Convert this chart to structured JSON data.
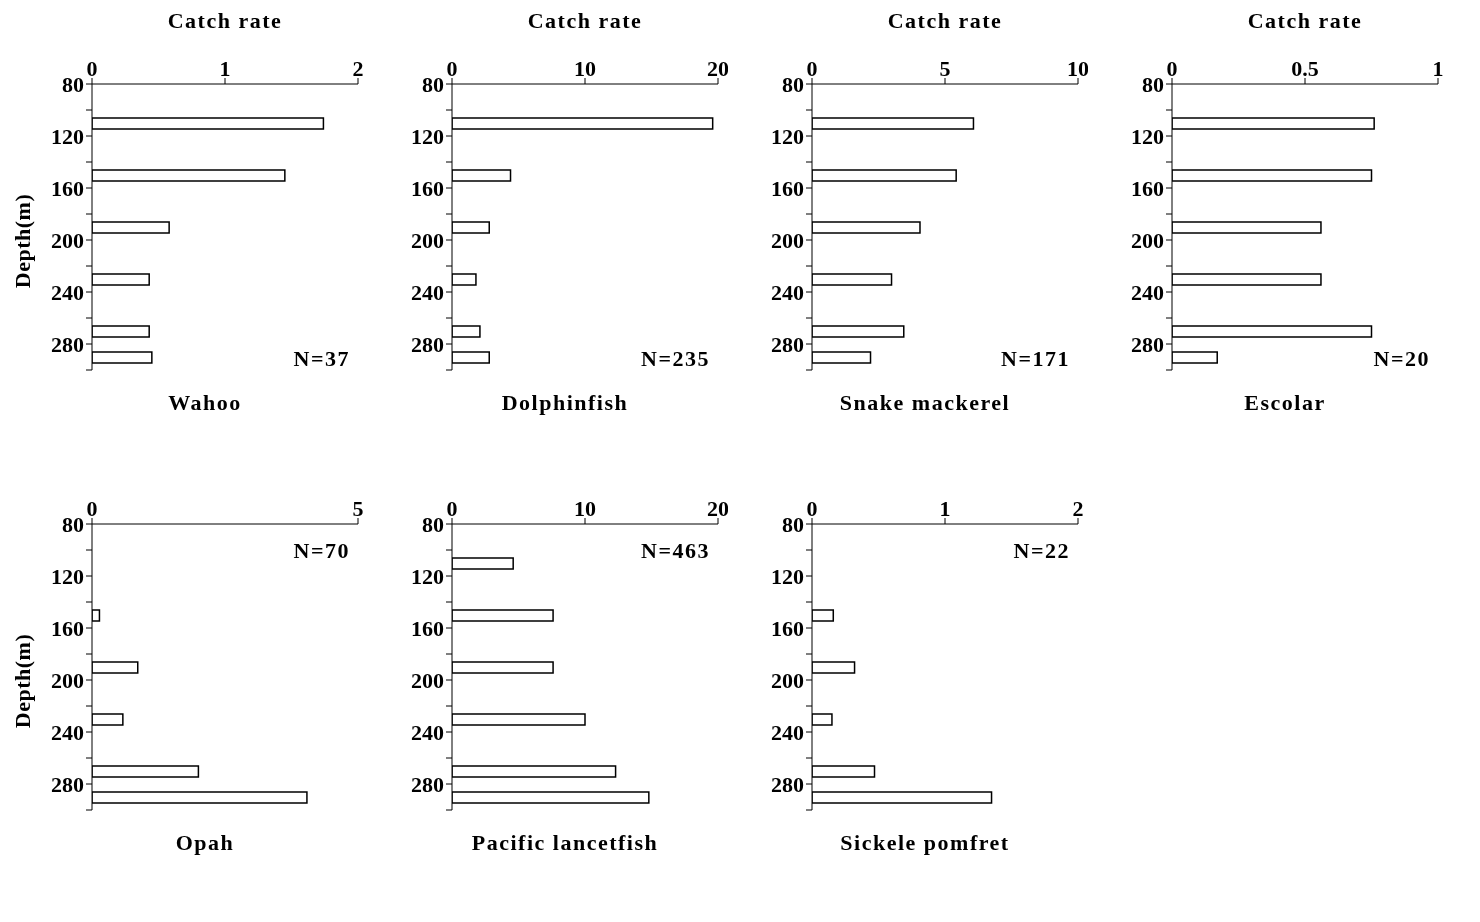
{
  "chart_data": [
    {
      "type": "bar",
      "orientation": "horizontal",
      "title": "Wahoo",
      "xlabel": "Catch rate",
      "ylabel": "Depth(m)",
      "x": [
        110,
        150,
        190,
        230,
        270,
        290
      ],
      "values": [
        1.74,
        1.45,
        0.58,
        0.43,
        0.43,
        0.45
      ],
      "color": "#ffffff",
      "xlim": [
        0,
        2
      ],
      "xticks": [
        0,
        1,
        2
      ],
      "ylim": [
        300,
        80
      ],
      "yticks": [
        80,
        {
          "value": 100,
          "label": null
        },
        120,
        {
          "value": 140,
          "label": null
        },
        160,
        {
          "value": 180,
          "label": null
        },
        200,
        {
          "value": 220,
          "label": null
        },
        240,
        {
          "value": 260,
          "label": null
        },
        280,
        {
          "value": 300,
          "label": null
        }
      ],
      "annotations": [
        "N=37"
      ]
    },
    {
      "type": "bar",
      "orientation": "horizontal",
      "title": "Dolphinfish",
      "xlabel": "Catch rate",
      "x": [
        110,
        150,
        190,
        230,
        270,
        290
      ],
      "values": [
        19.6,
        4.4,
        2.8,
        1.8,
        2.1,
        2.8
      ],
      "color": "#ffffff",
      "xlim": [
        0,
        20
      ],
      "xticks": [
        0,
        10,
        20
      ],
      "ylim": [
        300,
        80
      ],
      "yticks": [
        80,
        {
          "value": 100,
          "label": null
        },
        120,
        {
          "value": 140,
          "label": null
        },
        160,
        {
          "value": 180,
          "label": null
        },
        200,
        {
          "value": 220,
          "label": null
        },
        240,
        {
          "value": 260,
          "label": null
        },
        280,
        {
          "value": 300,
          "label": null
        }
      ],
      "annotations": [
        "N=235"
      ]
    },
    {
      "type": "bar",
      "orientation": "horizontal",
      "title": "Snake mackerel",
      "xlabel": "Catch rate",
      "x": [
        110,
        150,
        190,
        230,
        270,
        290
      ],
      "values": [
        6.07,
        5.42,
        4.06,
        2.99,
        3.45,
        2.2
      ],
      "color": "#ffffff",
      "xlim": [
        0,
        10
      ],
      "xticks": [
        0,
        5,
        10
      ],
      "ylim": [
        300,
        80
      ],
      "yticks": [
        80,
        {
          "value": 100,
          "label": null
        },
        120,
        {
          "value": 140,
          "label": null
        },
        160,
        {
          "value": 180,
          "label": null
        },
        200,
        {
          "value": 220,
          "label": null
        },
        240,
        {
          "value": 260,
          "label": null
        },
        280,
        {
          "value": 300,
          "label": null
        }
      ],
      "annotations": [
        "N=171"
      ]
    },
    {
      "type": "bar",
      "orientation": "horizontal",
      "title": "Escolar",
      "xlabel": "Catch rate",
      "x": [
        110,
        150,
        190,
        230,
        270,
        290
      ],
      "values": [
        0.76,
        0.75,
        0.56,
        0.56,
        0.75,
        0.17
      ],
      "color": "#ffffff",
      "xlim": [
        0,
        1
      ],
      "xticks": [
        0,
        0.5,
        1
      ],
      "ylim": [
        300,
        80
      ],
      "yticks": [
        80,
        {
          "value": 100,
          "label": null
        },
        120,
        {
          "value": 140,
          "label": null
        },
        160,
        {
          "value": 180,
          "label": null
        },
        200,
        {
          "value": 220,
          "label": null
        },
        240,
        {
          "value": 260,
          "label": null
        },
        280,
        {
          "value": 300,
          "label": null
        }
      ],
      "annotations": [
        "N=20"
      ]
    },
    {
      "type": "bar",
      "orientation": "horizontal",
      "title": "Opah",
      "ylabel": "Depth(m)",
      "x": [
        150,
        190,
        230,
        270,
        290
      ],
      "values": [
        0.14,
        0.86,
        0.58,
        2.0,
        4.04
      ],
      "color": "#ffffff",
      "xlim": [
        0,
        5
      ],
      "xticks": [
        0,
        5
      ],
      "ylim": [
        300,
        80
      ],
      "yticks": [
        80,
        {
          "value": 100,
          "label": null
        },
        120,
        {
          "value": 140,
          "label": null
        },
        160,
        {
          "value": 180,
          "label": null
        },
        200,
        {
          "value": 220,
          "label": null
        },
        240,
        {
          "value": 260,
          "label": null
        },
        280,
        {
          "value": 300,
          "label": null
        }
      ],
      "annotations": [
        "N=70"
      ]
    },
    {
      "type": "bar",
      "orientation": "horizontal",
      "title": "Pacific lancetfish",
      "x": [
        110,
        150,
        190,
        230,
        270,
        290
      ],
      "values": [
        4.6,
        7.6,
        7.6,
        10.0,
        12.3,
        14.8
      ],
      "color": "#ffffff",
      "xlim": [
        0,
        20
      ],
      "xticks": [
        0,
        10,
        20
      ],
      "ylim": [
        300,
        80
      ],
      "yticks": [
        80,
        {
          "value": 100,
          "label": null
        },
        120,
        {
          "value": 140,
          "label": null
        },
        160,
        {
          "value": 180,
          "label": null
        },
        200,
        {
          "value": 220,
          "label": null
        },
        240,
        {
          "value": 260,
          "label": null
        },
        280,
        {
          "value": 300,
          "label": null
        }
      ],
      "annotations": [
        "N=463"
      ]
    },
    {
      "type": "bar",
      "orientation": "horizontal",
      "title": "Sickele pomfret",
      "x": [
        150,
        190,
        230,
        270,
        290
      ],
      "values": [
        0.16,
        0.32,
        0.15,
        0.47,
        1.35
      ],
      "color": "#ffffff",
      "xlim": [
        0,
        2
      ],
      "xticks": [
        0,
        1,
        2
      ],
      "ylim": [
        300,
        80
      ],
      "yticks": [
        80,
        {
          "value": 100,
          "label": null
        },
        120,
        {
          "value": 140,
          "label": null
        },
        160,
        {
          "value": 180,
          "label": null
        },
        200,
        {
          "value": 220,
          "label": null
        },
        240,
        {
          "value": 260,
          "label": null
        },
        280,
        {
          "value": 300,
          "label": null
        }
      ],
      "annotations": [
        "N=22"
      ]
    }
  ]
}
